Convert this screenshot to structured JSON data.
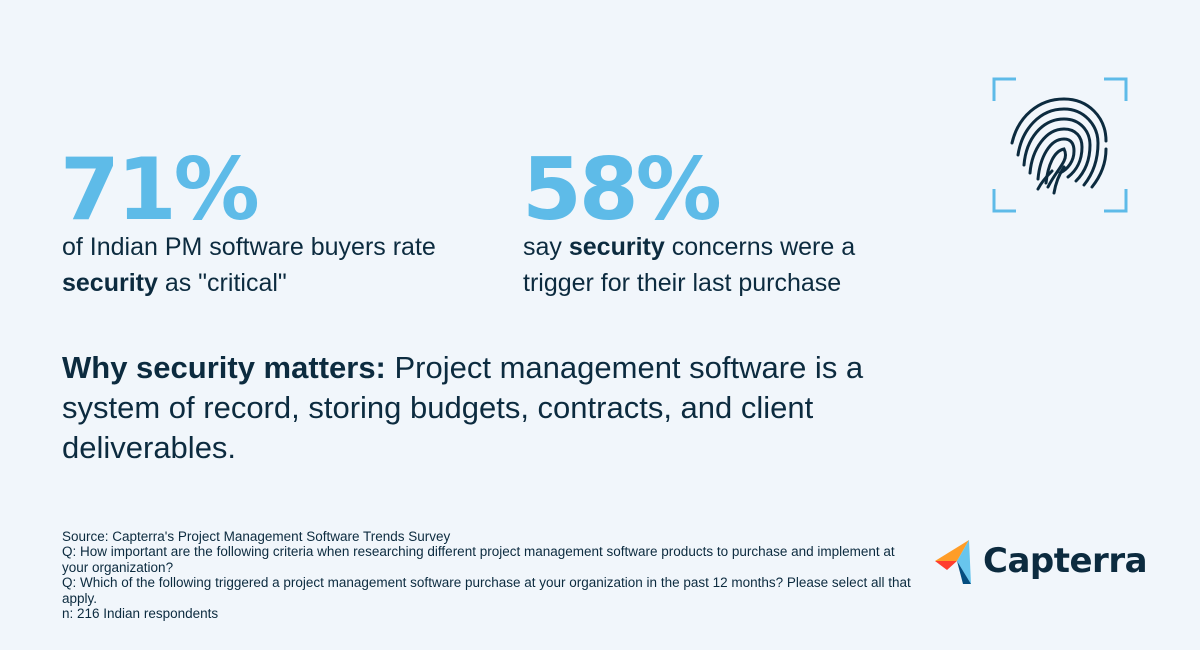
{
  "stats": [
    {
      "number": "71%",
      "text_before": "of Indian PM software buyers rate ",
      "text_bold": "security",
      "text_after": " as \"critical\""
    },
    {
      "number": "58%",
      "text_before": "say ",
      "text_bold": "security",
      "text_after": " concerns were a trigger for their last purchase"
    }
  ],
  "why": {
    "heading": "Why security matters:",
    "body": " Project management software is a system of record, storing budgets, contracts, and client deliverables."
  },
  "source": {
    "line1": "Source: Capterra's Project Management Software Trends Survey",
    "line2": "Q: How important are the following criteria when researching different project management software products to purchase and implement at your organization?",
    "line3": "Q: Which of the following triggered a project management software purchase at your organization in the past 12 months? Please select all that apply.",
    "line4": "n: 216 Indian respondents"
  },
  "logo": {
    "name": "Capterra"
  },
  "icons": {
    "fingerprint": "fingerprint-icon",
    "logo_mark": "capterra-logo-mark-icon"
  },
  "colors": {
    "background": "#f1f6fb",
    "accent": "#5ebbe8",
    "text": "#0c2b3f",
    "logo_orange": "#ff9d28",
    "logo_blue": "#68c5ed",
    "logo_navy": "#044d80",
    "logo_red": "#ff3d2e"
  }
}
